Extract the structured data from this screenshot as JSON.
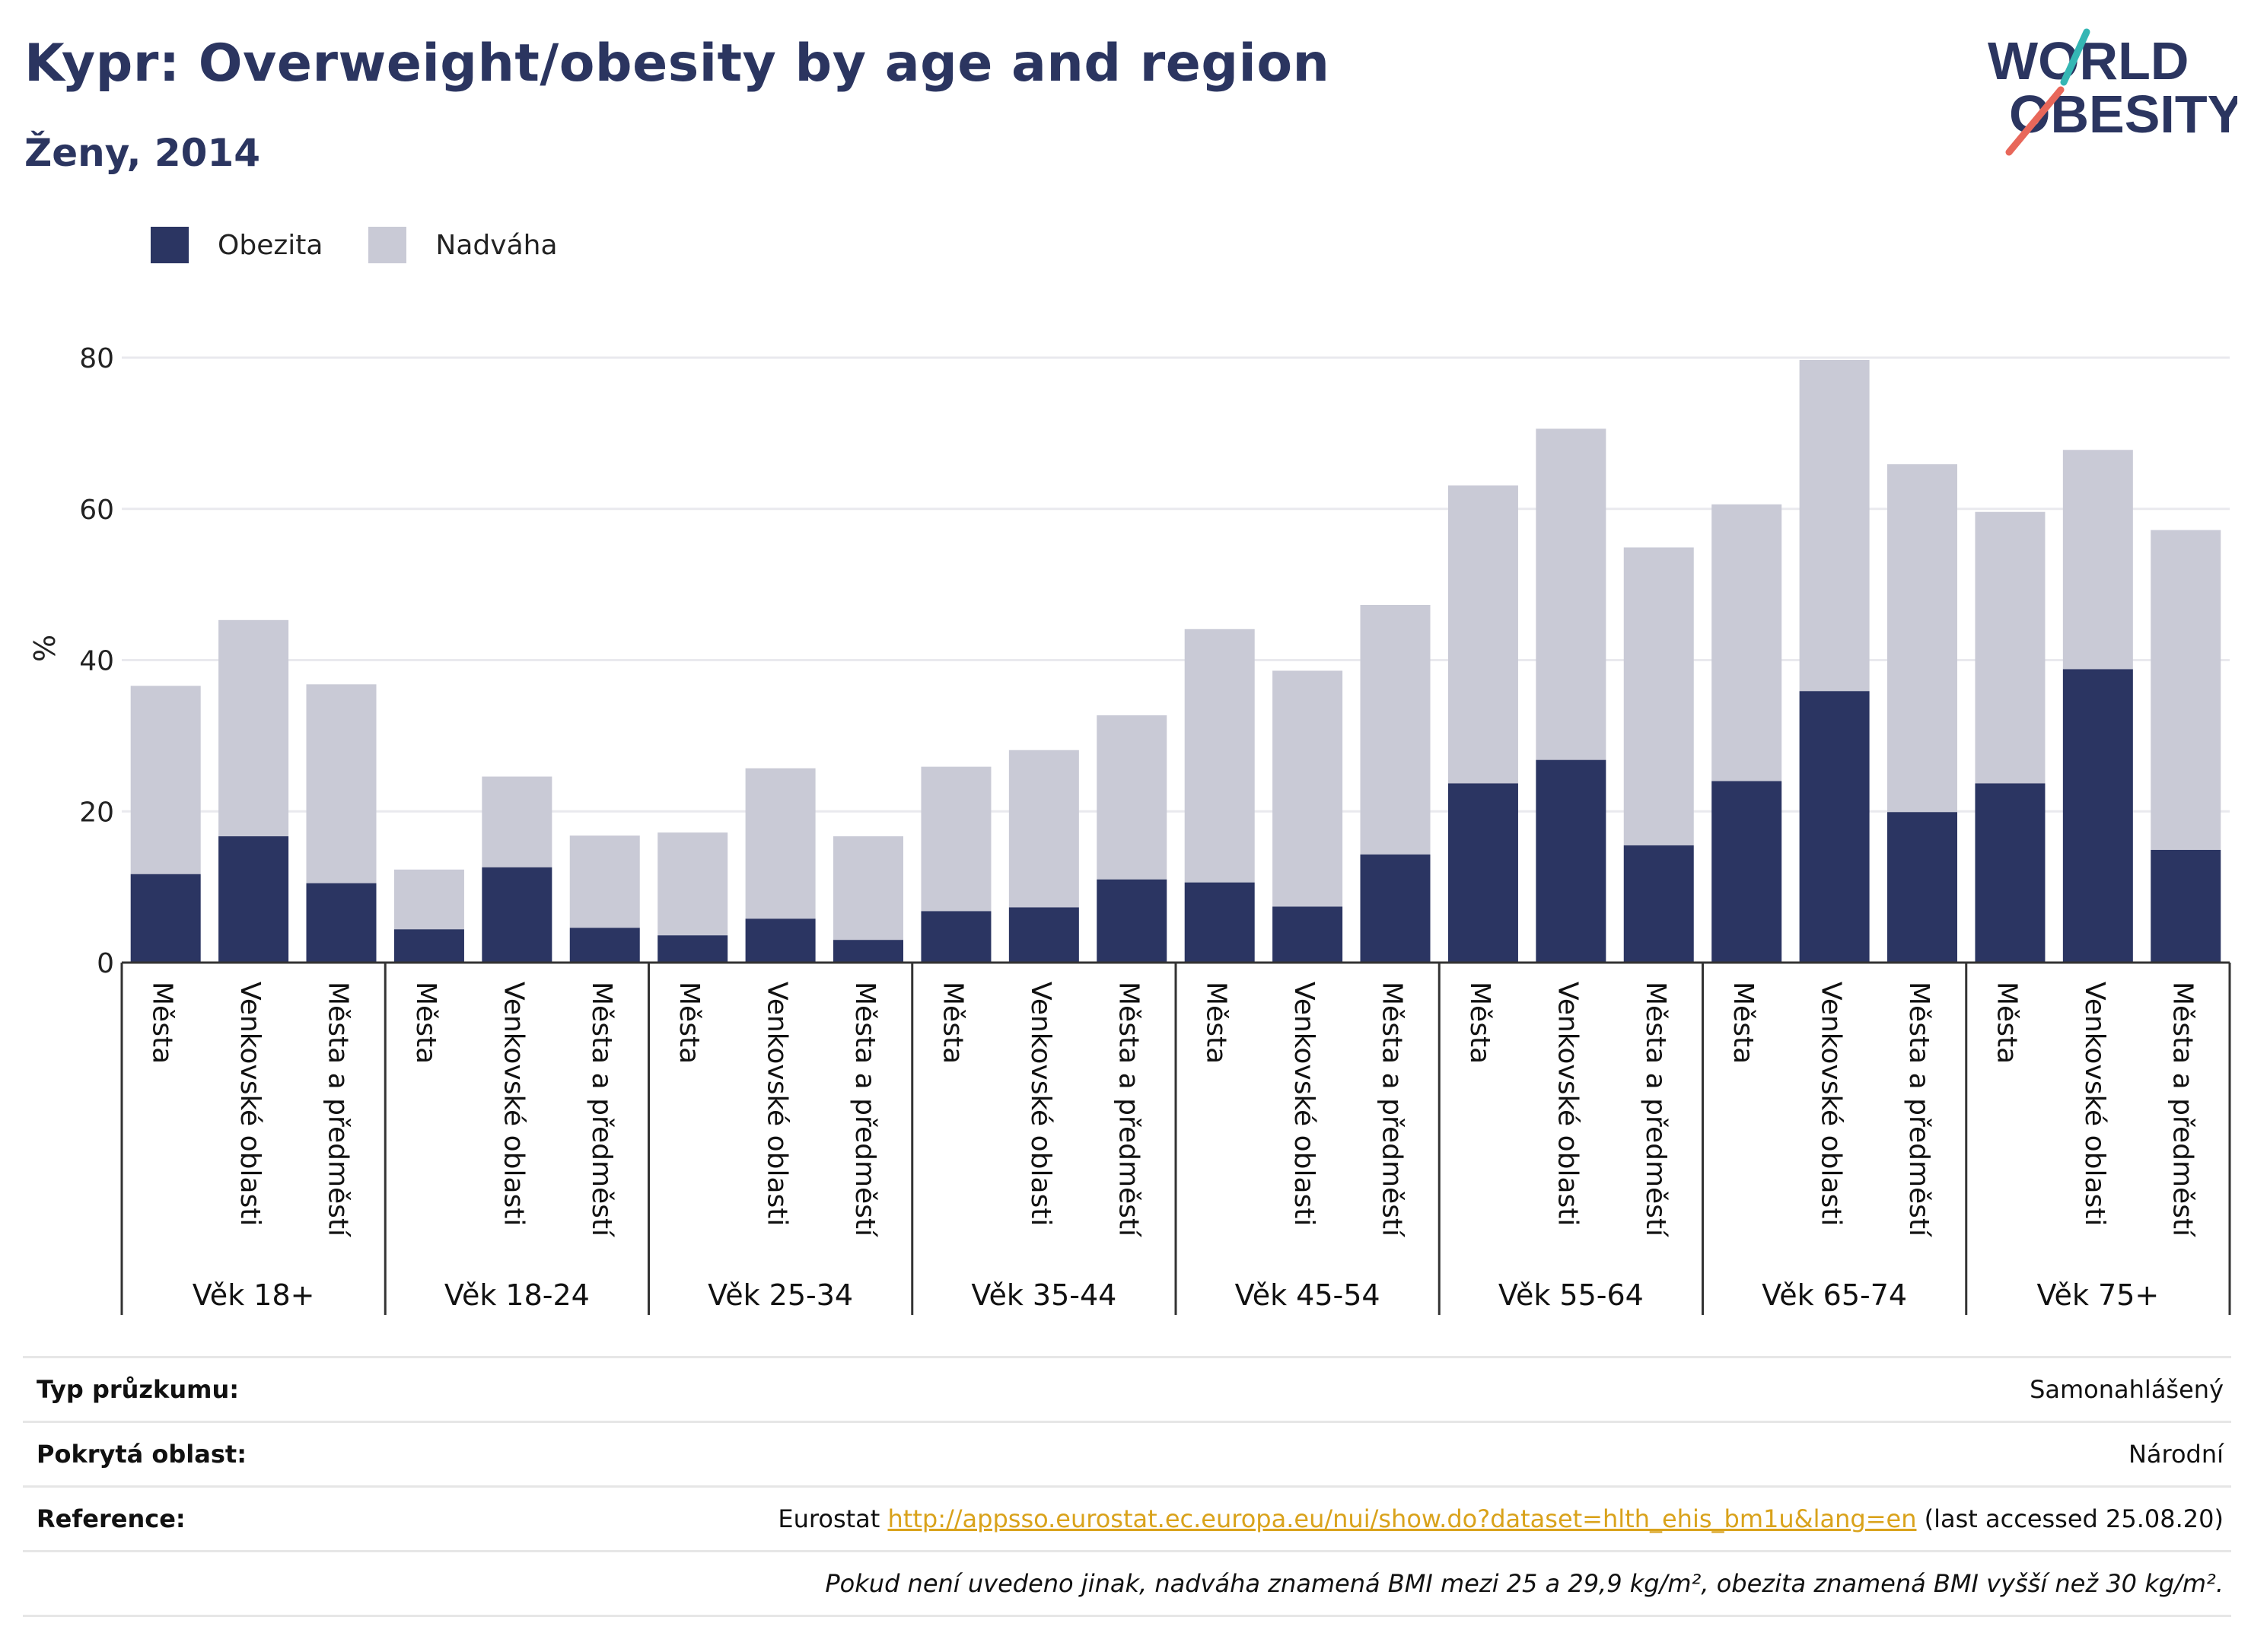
{
  "header": {
    "title": "Kypr: Overweight/obesity by age and region",
    "subtitle": "Ženy, 2014",
    "logo_line1": "WORLD",
    "logo_line2": "OBESITY"
  },
  "legend": {
    "obesity_label": "Obezita",
    "overweight_label": "Nadváha"
  },
  "colors": {
    "obesity": "#2b3562",
    "overweight": "#c9cad6",
    "title": "#2b3560",
    "link": "#d9a21b",
    "logo_slash_teal": "#35b6b4",
    "logo_slash_red": "#e8675a"
  },
  "chart_data": {
    "type": "bar",
    "stacked": true,
    "ylabel": "%",
    "ylim": [
      0,
      80
    ],
    "yticks": [
      0,
      20,
      40,
      60,
      80
    ],
    "grid": true,
    "legend_position": "top-left",
    "groups": [
      "Věk 18+",
      "Věk 18-24",
      "Věk 25-34",
      "Věk 35-44",
      "Věk 45-54",
      "Věk 55-64",
      "Věk 65-74",
      "Věk 75+"
    ],
    "regions": [
      "Města",
      "Venkovské oblasti",
      "Města a předměstí"
    ],
    "series": [
      {
        "name": "Obezita",
        "values": [
          [
            11.7,
            16.7,
            10.5
          ],
          [
            4.4,
            12.6,
            4.6
          ],
          [
            3.6,
            5.8,
            3.0
          ],
          [
            6.8,
            7.3,
            11.0
          ],
          [
            10.6,
            7.4,
            14.3
          ],
          [
            23.7,
            26.8,
            15.5
          ],
          [
            24.0,
            35.9,
            19.9
          ],
          [
            23.7,
            38.8,
            14.9
          ]
        ]
      },
      {
        "name": "Nadváha",
        "values": [
          [
            24.9,
            28.6,
            26.3
          ],
          [
            7.9,
            12.0,
            12.2
          ],
          [
            13.6,
            19.9,
            13.7
          ],
          [
            19.1,
            20.8,
            21.7
          ],
          [
            33.5,
            31.2,
            33.0
          ],
          [
            39.4,
            43.8,
            39.4
          ],
          [
            36.6,
            43.8,
            46.0
          ],
          [
            35.9,
            29.0,
            42.3
          ]
        ]
      }
    ]
  },
  "info": {
    "survey_type_label": "Typ průzkumu:",
    "survey_type_value": "Samonahlášený",
    "coverage_label": "Pokrytá oblast:",
    "coverage_value": "Národní",
    "reference_label": "Reference:",
    "reference_source": "Eurostat",
    "reference_url": "http://appsso.eurostat.ec.europa.eu/nui/show.do?dataset=hlth_ehis_bm1u&lang=en",
    "reference_accessed": "(last accessed 25.08.20)",
    "note": "Pokud není uvedeno jinak, nadváha znamená BMI mezi 25 a 29,9 kg/m², obezita znamená BMI vyšší než 30 kg/m²."
  }
}
